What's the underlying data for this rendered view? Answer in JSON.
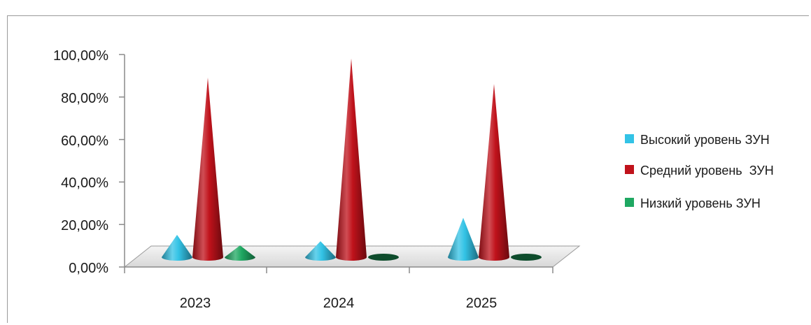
{
  "chart_data": {
    "type": "bar",
    "style": "3d-cone",
    "categories": [
      "2023",
      "2024",
      "2025"
    ],
    "series": [
      {
        "name": "Высокий уровень ЗУН",
        "color": "#33c3e6",
        "values": [
          11,
          8,
          19
        ]
      },
      {
        "name": "Средний уровень  ЗУН",
        "color": "#c0121b",
        "values": [
          85,
          94,
          82
        ]
      },
      {
        "name": "Низкий уровень ЗУН",
        "color": "#1fa862",
        "values": [
          6,
          0,
          0
        ]
      }
    ],
    "y_ticks": [
      "0,00%",
      "20,00%",
      "40,00%",
      "60,00%",
      "80,00%",
      "100,00%"
    ],
    "ylim": [
      0,
      100
    ],
    "grid": false,
    "legend_position": "right"
  }
}
